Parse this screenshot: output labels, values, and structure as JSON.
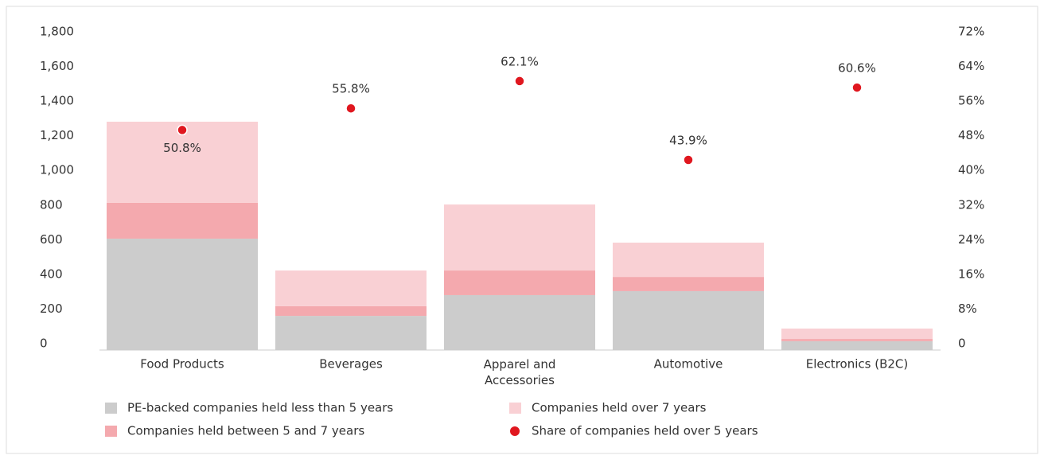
{
  "chart_data": {
    "type": "stacked_bar_with_dots",
    "categories": [
      "Food Products",
      "Beverages",
      "Apparel and Accessories",
      "Automotive",
      "Electronics (B2C)"
    ],
    "series": [
      {
        "name": "PE-backed companies held less than 5 years",
        "color": "#cccccc",
        "values": [
          643,
          197,
          317,
          340,
          51
        ]
      },
      {
        "name": "Companies held between 5 and 7 years",
        "color": "#f4a9ae",
        "values": [
          207,
          56,
          142,
          82,
          13
        ]
      },
      {
        "name": "Companies held over 7 years",
        "color": "#f9d0d4",
        "values": [
          468,
          206,
          381,
          198,
          60
        ]
      },
      {
        "name": "Share of companies held over 5 years",
        "color": "#e0171f",
        "axis": "y2",
        "values": [
          50.8,
          55.8,
          62.1,
          43.9,
          60.6
        ],
        "value_labels": [
          "50.8%",
          "55.8%",
          "62.1%",
          "43.9%",
          "60.6%"
        ]
      }
    ],
    "ylim": [
      0,
      1800
    ],
    "yticks": [
      0,
      200,
      400,
      600,
      800,
      {
        "value": 1000,
        "label": "1,000"
      },
      {
        "value": 1200,
        "label": "1,200"
      },
      {
        "value": 1400,
        "label": "1,400"
      },
      {
        "value": 1600,
        "label": "1,600"
      },
      {
        "value": 1800,
        "label": "1,800"
      }
    ],
    "y2lim": [
      0,
      72
    ],
    "y2ticks": [
      {
        "value": 0,
        "label": "0"
      },
      {
        "value": 8,
        "label": "8%"
      },
      {
        "value": 16,
        "label": "16%"
      },
      {
        "value": 24,
        "label": "24%"
      },
      {
        "value": 32,
        "label": "32%"
      },
      {
        "value": 40,
        "label": "40%"
      },
      {
        "value": 48,
        "label": "48%"
      },
      {
        "value": 56,
        "label": "56%"
      },
      {
        "value": 64,
        "label": "64%"
      },
      {
        "value": 72,
        "label": "72%"
      }
    ],
    "grid": false,
    "legend": "bottom"
  }
}
